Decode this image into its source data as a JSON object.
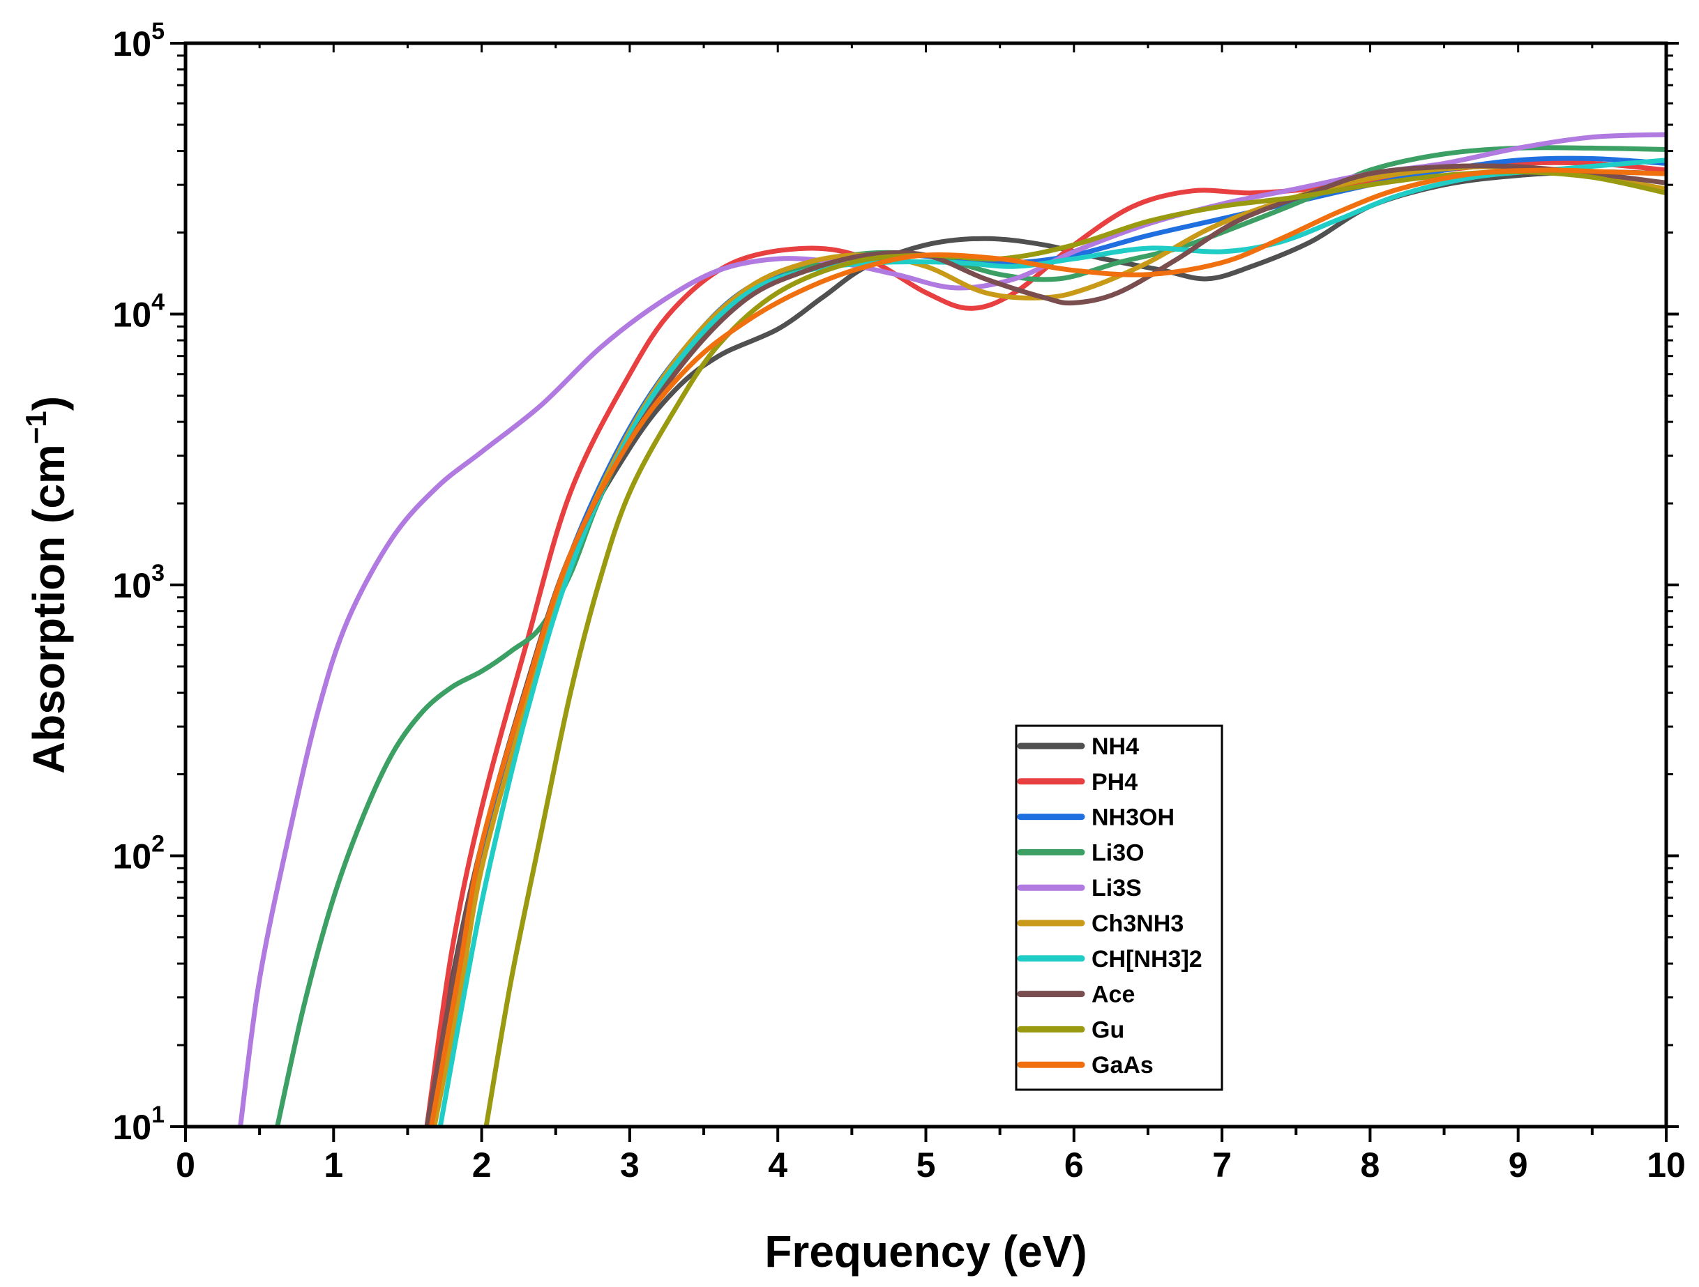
{
  "chart_data": {
    "type": "line",
    "title": "",
    "xlabel": "Frequency (eV)",
    "ylabel_main": "Absorption (cm",
    "ylabel_sup": "−1",
    "ylabel_close": ")",
    "xlim": [
      0,
      10
    ],
    "ylim": [
      10,
      100000
    ],
    "yscale": "log",
    "grid": false,
    "legend_position": "lower-right",
    "x_ticks": [
      "0",
      "1",
      "2",
      "3",
      "4",
      "5",
      "6",
      "7",
      "8",
      "9",
      "10"
    ],
    "y_ticks": [
      {
        "base": "10",
        "exp": "1"
      },
      {
        "base": "10",
        "exp": "2"
      },
      {
        "base": "10",
        "exp": "3"
      },
      {
        "base": "10",
        "exp": "4"
      },
      {
        "base": "10",
        "exp": "5"
      }
    ],
    "series": [
      {
        "name": "NH4",
        "color": "#505050",
        "points": [
          [
            1.63,
            10
          ],
          [
            1.8,
            35
          ],
          [
            2.0,
            110
          ],
          [
            2.3,
            420
          ],
          [
            2.6,
            1300
          ],
          [
            3.0,
            3200
          ],
          [
            3.3,
            5200
          ],
          [
            3.6,
            7000
          ],
          [
            4.0,
            8800
          ],
          [
            4.3,
            11500
          ],
          [
            4.6,
            15000
          ],
          [
            5.0,
            18000
          ],
          [
            5.4,
            19000
          ],
          [
            5.8,
            18000
          ],
          [
            6.2,
            16000
          ],
          [
            6.6,
            14500
          ],
          [
            6.9,
            13500
          ],
          [
            7.2,
            15000
          ],
          [
            7.6,
            18500
          ],
          [
            8.0,
            25000
          ],
          [
            8.5,
            30000
          ],
          [
            9.0,
            32500
          ],
          [
            9.5,
            33500
          ],
          [
            10.0,
            33000
          ]
        ]
      },
      {
        "name": "PH4",
        "color": "#E84040",
        "points": [
          [
            1.63,
            10
          ],
          [
            1.8,
            45
          ],
          [
            2.0,
            150
          ],
          [
            2.3,
            600
          ],
          [
            2.6,
            2200
          ],
          [
            3.0,
            6000
          ],
          [
            3.3,
            10500
          ],
          [
            3.7,
            15500
          ],
          [
            4.2,
            17500
          ],
          [
            4.6,
            16000
          ],
          [
            5.0,
            12000
          ],
          [
            5.3,
            10500
          ],
          [
            5.6,
            12000
          ],
          [
            6.0,
            18000
          ],
          [
            6.4,
            25000
          ],
          [
            6.8,
            28500
          ],
          [
            7.2,
            28000
          ],
          [
            7.6,
            29000
          ],
          [
            8.0,
            31000
          ],
          [
            8.5,
            34000
          ],
          [
            9.0,
            36000
          ],
          [
            9.5,
            36000
          ],
          [
            10.0,
            34000
          ]
        ]
      },
      {
        "name": "NH3OH",
        "color": "#1F6FE0",
        "points": [
          [
            1.68,
            10
          ],
          [
            1.85,
            35
          ],
          [
            2.0,
            100
          ],
          [
            2.3,
            380
          ],
          [
            2.6,
            1300
          ],
          [
            3.0,
            3800
          ],
          [
            3.4,
            7800
          ],
          [
            3.8,
            12500
          ],
          [
            4.3,
            15500
          ],
          [
            4.8,
            16500
          ],
          [
            5.2,
            16000
          ],
          [
            5.6,
            15500
          ],
          [
            6.0,
            16500
          ],
          [
            6.5,
            19500
          ],
          [
            7.0,
            22500
          ],
          [
            7.5,
            26000
          ],
          [
            8.0,
            30000
          ],
          [
            8.5,
            34000
          ],
          [
            9.0,
            37000
          ],
          [
            9.5,
            37500
          ],
          [
            10.0,
            36000
          ]
        ]
      },
      {
        "name": "Li3O",
        "color": "#3CA064",
        "points": [
          [
            0.62,
            10
          ],
          [
            0.8,
            28
          ],
          [
            1.0,
            70
          ],
          [
            1.2,
            140
          ],
          [
            1.4,
            240
          ],
          [
            1.6,
            340
          ],
          [
            1.8,
            420
          ],
          [
            2.0,
            480
          ],
          [
            2.2,
            570
          ],
          [
            2.4,
            700
          ],
          [
            2.6,
            1100
          ],
          [
            2.8,
            2100
          ],
          [
            3.1,
            4400
          ],
          [
            3.5,
            8500
          ],
          [
            4.0,
            13500
          ],
          [
            4.5,
            16500
          ],
          [
            5.0,
            16500
          ],
          [
            5.5,
            14000
          ],
          [
            5.9,
            13500
          ],
          [
            6.3,
            15500
          ],
          [
            6.7,
            17500
          ],
          [
            7.1,
            21000
          ],
          [
            7.6,
            27000
          ],
          [
            8.0,
            34000
          ],
          [
            8.5,
            39000
          ],
          [
            9.0,
            41000
          ],
          [
            9.5,
            41000
          ],
          [
            10.0,
            40500
          ]
        ]
      },
      {
        "name": "Li3S",
        "color": "#B07AE0",
        "points": [
          [
            0.37,
            10
          ],
          [
            0.5,
            35
          ],
          [
            0.7,
            120
          ],
          [
            0.9,
            350
          ],
          [
            1.1,
            750
          ],
          [
            1.4,
            1500
          ],
          [
            1.7,
            2300
          ],
          [
            2.0,
            3100
          ],
          [
            2.4,
            4600
          ],
          [
            2.8,
            7500
          ],
          [
            3.2,
            11000
          ],
          [
            3.6,
            14500
          ],
          [
            4.0,
            16000
          ],
          [
            4.4,
            15500
          ],
          [
            4.8,
            14000
          ],
          [
            5.2,
            12500
          ],
          [
            5.6,
            13500
          ],
          [
            6.0,
            17000
          ],
          [
            6.5,
            21500
          ],
          [
            7.0,
            25500
          ],
          [
            7.5,
            29000
          ],
          [
            8.0,
            33000
          ],
          [
            8.5,
            36000
          ],
          [
            9.0,
            41000
          ],
          [
            9.5,
            45000
          ],
          [
            10.0,
            46000
          ]
        ]
      },
      {
        "name": "Ch3NH3",
        "color": "#C89A18",
        "points": [
          [
            1.68,
            10
          ],
          [
            1.85,
            30
          ],
          [
            2.0,
            90
          ],
          [
            2.3,
            360
          ],
          [
            2.6,
            1250
          ],
          [
            3.0,
            3700
          ],
          [
            3.4,
            7800
          ],
          [
            3.8,
            12500
          ],
          [
            4.2,
            15500
          ],
          [
            4.6,
            16500
          ],
          [
            5.0,
            15000
          ],
          [
            5.4,
            12000
          ],
          [
            5.8,
            11500
          ],
          [
            6.1,
            12500
          ],
          [
            6.5,
            15500
          ],
          [
            6.9,
            20500
          ],
          [
            7.3,
            25000
          ],
          [
            7.8,
            30000
          ],
          [
            8.3,
            33500
          ],
          [
            8.8,
            35000
          ],
          [
            9.3,
            33500
          ],
          [
            10.0,
            29000
          ]
        ]
      },
      {
        "name": "CH[NH3]2",
        "color": "#1FCCC6",
        "points": [
          [
            1.72,
            10
          ],
          [
            1.9,
            35
          ],
          [
            2.05,
            90
          ],
          [
            2.3,
            330
          ],
          [
            2.6,
            1150
          ],
          [
            3.0,
            3600
          ],
          [
            3.4,
            7500
          ],
          [
            3.8,
            12000
          ],
          [
            4.2,
            14500
          ],
          [
            4.7,
            15500
          ],
          [
            5.2,
            15500
          ],
          [
            5.6,
            15000
          ],
          [
            6.0,
            16000
          ],
          [
            6.5,
            17500
          ],
          [
            7.0,
            17000
          ],
          [
            7.4,
            18500
          ],
          [
            7.8,
            22500
          ],
          [
            8.2,
            27500
          ],
          [
            8.7,
            32000
          ],
          [
            9.2,
            34000
          ],
          [
            9.6,
            35500
          ],
          [
            10.0,
            37000
          ]
        ]
      },
      {
        "name": "Ace",
        "color": "#7A4E4E",
        "points": [
          [
            1.63,
            10
          ],
          [
            1.8,
            33
          ],
          [
            2.0,
            110
          ],
          [
            2.3,
            420
          ],
          [
            2.6,
            1300
          ],
          [
            3.0,
            3400
          ],
          [
            3.4,
            7000
          ],
          [
            3.8,
            11500
          ],
          [
            4.2,
            14500
          ],
          [
            4.6,
            16500
          ],
          [
            5.0,
            16500
          ],
          [
            5.4,
            13500
          ],
          [
            5.8,
            11500
          ],
          [
            6.0,
            11000
          ],
          [
            6.3,
            12000
          ],
          [
            6.7,
            16000
          ],
          [
            7.1,
            22000
          ],
          [
            7.6,
            28000
          ],
          [
            8.0,
            33000
          ],
          [
            8.5,
            35000
          ],
          [
            9.0,
            35000
          ],
          [
            9.5,
            33000
          ],
          [
            10.0,
            30500
          ]
        ]
      },
      {
        "name": "Gu",
        "color": "#9A9A10",
        "points": [
          [
            2.03,
            10
          ],
          [
            2.2,
            35
          ],
          [
            2.4,
            120
          ],
          [
            2.6,
            400
          ],
          [
            2.8,
            1050
          ],
          [
            3.0,
            2200
          ],
          [
            3.3,
            4400
          ],
          [
            3.6,
            7700
          ],
          [
            4.0,
            12000
          ],
          [
            4.5,
            15500
          ],
          [
            5.0,
            16500
          ],
          [
            5.5,
            16000
          ],
          [
            6.0,
            18000
          ],
          [
            6.5,
            22000
          ],
          [
            7.0,
            25000
          ],
          [
            7.5,
            27000
          ],
          [
            8.0,
            30000
          ],
          [
            8.5,
            32500
          ],
          [
            9.0,
            33500
          ],
          [
            9.5,
            32000
          ],
          [
            10.0,
            28000
          ]
        ]
      },
      {
        "name": "GaAs",
        "color": "#F07010",
        "points": [
          [
            1.66,
            10
          ],
          [
            1.85,
            38
          ],
          [
            2.0,
            110
          ],
          [
            2.3,
            410
          ],
          [
            2.6,
            1300
          ],
          [
            3.0,
            3400
          ],
          [
            3.4,
            6400
          ],
          [
            3.8,
            9500
          ],
          [
            4.2,
            12500
          ],
          [
            4.6,
            15000
          ],
          [
            5.0,
            16500
          ],
          [
            5.5,
            16000
          ],
          [
            6.0,
            14500
          ],
          [
            6.5,
            14000
          ],
          [
            7.0,
            15500
          ],
          [
            7.4,
            19000
          ],
          [
            7.8,
            24000
          ],
          [
            8.2,
            29000
          ],
          [
            8.7,
            33000
          ],
          [
            9.2,
            34000
          ],
          [
            9.6,
            33500
          ],
          [
            10.0,
            33000
          ]
        ]
      }
    ]
  }
}
